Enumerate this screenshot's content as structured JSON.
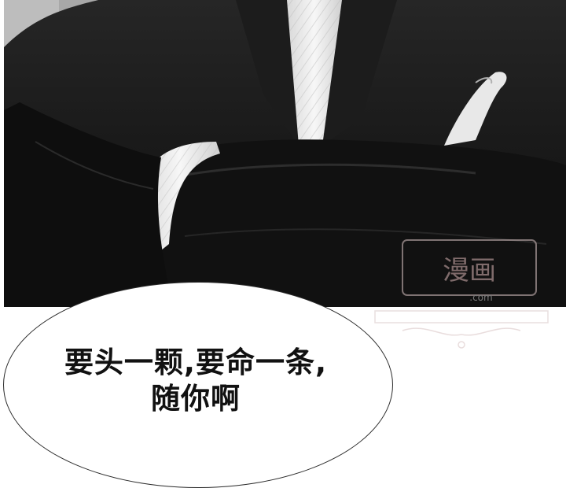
{
  "panel": {
    "image_alt": "Black-and-white illustration: person in a black wool coat with arms crossed over a white knit sweater"
  },
  "watermark": {
    "icon": "watermark-seal-icon",
    "text": "漫画",
    "subtext": ".com"
  },
  "speech_bubble": {
    "lines": [
      "要头一颗,要命一条,",
      "随你啊"
    ]
  },
  "colors": {
    "coat": "#141414",
    "sweater": "#efefef",
    "background": "#ffffff",
    "bubble_outline": "#2a2a2a"
  }
}
